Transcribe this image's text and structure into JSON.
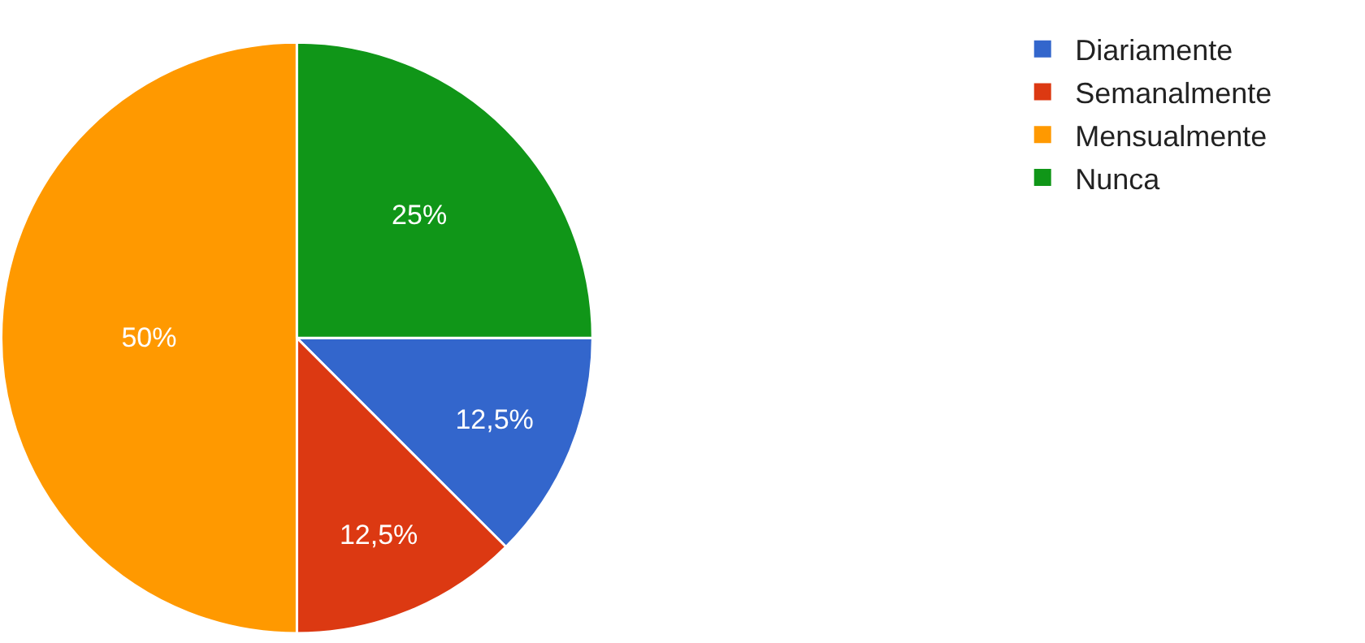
{
  "chart_data": {
    "type": "pie",
    "categories": [
      "Diariamente",
      "Semanalmente",
      "Mensualmente",
      "Nunca"
    ],
    "values": [
      12.5,
      12.5,
      50,
      25
    ],
    "value_labels": [
      "12,5%",
      "12,5%",
      "50%",
      "25%"
    ],
    "colors": [
      "#3366cc",
      "#dc3912",
      "#ff9900",
      "#109618"
    ],
    "legend": "top right"
  }
}
